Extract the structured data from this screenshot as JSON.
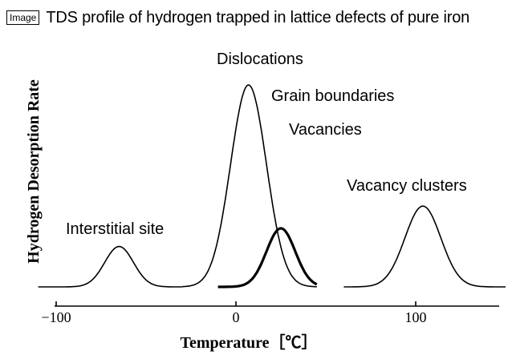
{
  "header": {
    "badge": "Image",
    "title": "TDS profile of hydrogen trapped in lattice defects of pure iron"
  },
  "chart_data": {
    "type": "line",
    "title": "TDS profile of hydrogen trapped in lattice defects of pure iron",
    "xlabel": "Temperature［℃］",
    "ylabel": "Hydrogen Desorption Rate",
    "x_ticks": [
      -100,
      0,
      100
    ],
    "x_tick_labels": [
      "−100",
      "0",
      "100"
    ],
    "xlim": [
      -110,
      150
    ],
    "ylim": [
      0,
      1
    ],
    "grid": false,
    "y_ticks_shown": false,
    "series": [
      {
        "name": "Interstitial site",
        "peak_x": -65,
        "peak_y": 0.2,
        "width": 8,
        "x_range": [
          -110,
          -30
        ],
        "line_weight": "thin"
      },
      {
        "name": "Dislocations",
        "peak_x": 7,
        "peak_y": 1.0,
        "width": 10,
        "x_range": [
          -30,
          45
        ],
        "line_weight": "thin"
      },
      {
        "name": "Grain boundaries / Vacancies",
        "peak_x": 25,
        "peak_y": 0.29,
        "width": 8,
        "x_range": [
          -10,
          45
        ],
        "line_weight": "bold"
      },
      {
        "name": "Vacancy clusters",
        "peak_x": 104,
        "peak_y": 0.4,
        "width": 10,
        "x_range": [
          60,
          150
        ],
        "line_weight": "thin"
      }
    ],
    "annotations": [
      "Dislocations",
      "Grain boundaries",
      "Vacancies",
      "Vacancy clusters",
      "Interstitial site"
    ]
  }
}
